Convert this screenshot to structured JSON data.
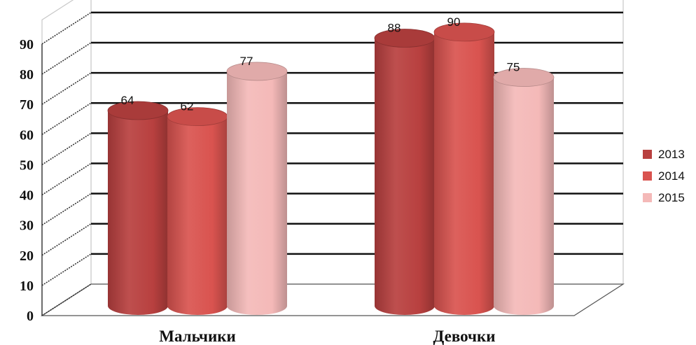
{
  "chart_data": {
    "type": "bar",
    "style": "3d-cylinder",
    "categories": [
      "Мальчики",
      "Девочки"
    ],
    "series": [
      {
        "name": "2013",
        "values": [
          64,
          88
        ],
        "color": "#b8403f"
      },
      {
        "name": "2014",
        "values": [
          62,
          90
        ],
        "color": "#d9534f"
      },
      {
        "name": "2015",
        "values": [
          77,
          75
        ],
        "color": "#f4b9b8"
      }
    ],
    "yticks": [
      "0",
      "10",
      "20",
      "30",
      "40",
      "50",
      "60",
      "70",
      "80",
      "90"
    ],
    "ylim": [
      0,
      90
    ],
    "grid": true,
    "legend": "right",
    "title": "",
    "xlabel": "",
    "ylabel": ""
  }
}
